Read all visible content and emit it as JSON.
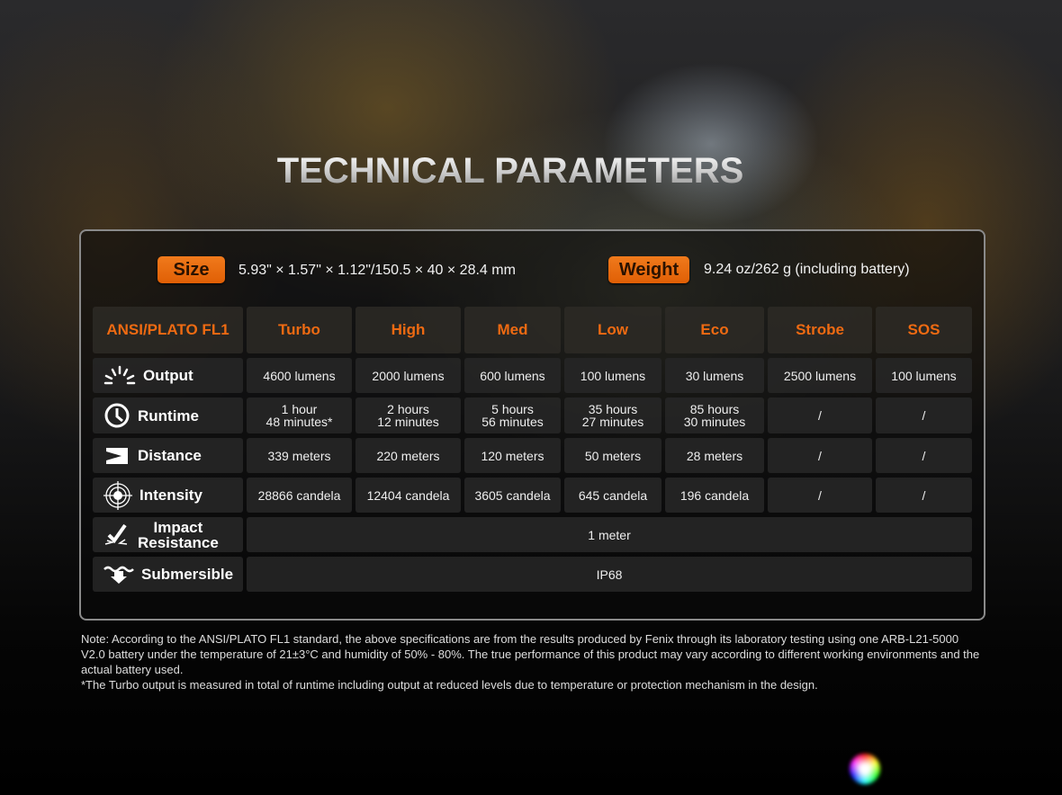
{
  "title": "TECHNICAL PARAMETERS",
  "size": {
    "label": "Size",
    "value": "5.93\" × 1.57\" × 1.12\"/150.5 × 40 × 28.4 mm"
  },
  "weight": {
    "label": "Weight",
    "value": "9.24 oz/262 g (including battery)"
  },
  "accent_color": "#ee6a12",
  "table": {
    "headers": [
      "ANSI/PLATO FL1",
      "Turbo",
      "High",
      "Med",
      "Low",
      "Eco",
      "Strobe",
      "SOS"
    ],
    "rows": [
      {
        "label": "Output",
        "icon": "light-burst-icon",
        "values": [
          "4600 lumens",
          "2000 lumens",
          "600 lumens",
          "100 lumens",
          "30 lumens",
          "2500 lumens",
          "100 lumens"
        ]
      },
      {
        "label": "Runtime",
        "icon": "clock-icon",
        "values": [
          [
            "1 hour",
            "48 minutes*"
          ],
          [
            "2 hours",
            "12 minutes"
          ],
          [
            "5 hours",
            "56 minutes"
          ],
          [
            "35 hours",
            "27 minutes"
          ],
          [
            "85 hours",
            "30 minutes"
          ],
          "/",
          "/"
        ]
      },
      {
        "label": "Distance",
        "icon": "beam-distance-icon",
        "values": [
          "339 meters",
          "220 meters",
          "120 meters",
          "50 meters",
          "28 meters",
          "/",
          "/"
        ]
      },
      {
        "label": "Intensity",
        "icon": "target-icon",
        "values": [
          "28866 candela",
          "12404 candela",
          "3605 candela",
          "645 candela",
          "196 candela",
          "/",
          "/"
        ]
      },
      {
        "label": "Impact Resistance",
        "label_lines": [
          "Impact",
          "Resistance"
        ],
        "icon": "impact-icon",
        "value": "1 meter"
      },
      {
        "label": "Submersible",
        "icon": "submersible-icon",
        "value": "IP68"
      }
    ]
  },
  "note": [
    "Note: According to the ANSI/PLATO FL1 standard, the above specifications are from the results produced by Fenix through its laboratory testing using one ARB-L21-5000 V2.0 battery under the temperature of 21±3°C and humidity of 50% - 80%. The true performance of this product may vary according to different working environments and the actual battery used.",
    "*The Turbo output is measured in total of runtime including output at reduced levels due to temperature or protection mechanism in the design."
  ]
}
